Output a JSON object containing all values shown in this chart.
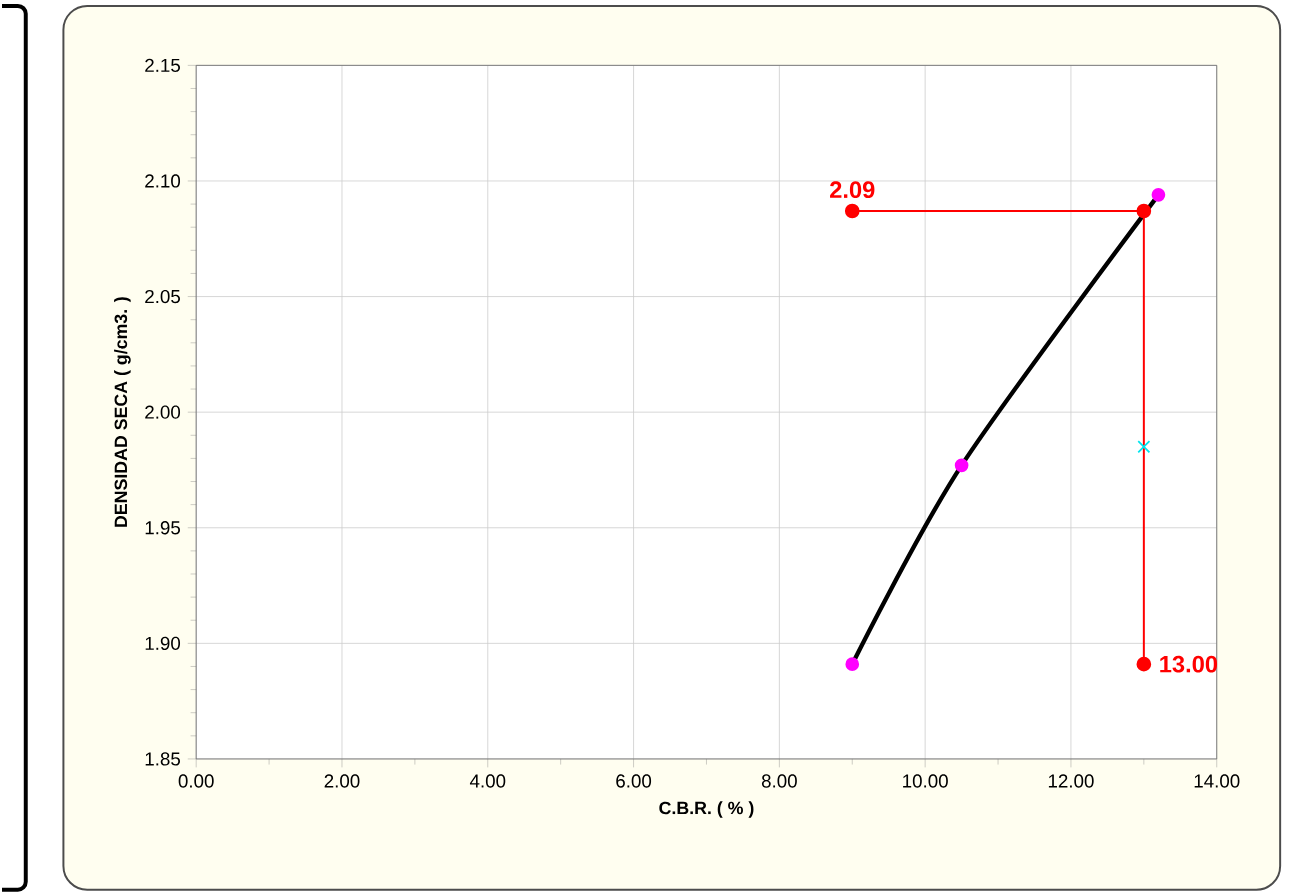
{
  "chart_data": {
    "type": "scatter",
    "xlabel": "C.B.R. ( % )",
    "ylabel": "DENSIDAD SECA ( g/cm3. )",
    "xlim": [
      0,
      14
    ],
    "ylim": [
      1.85,
      2.15
    ],
    "xticks": [
      {
        "value": 0,
        "label": "0.00"
      },
      {
        "value": 2,
        "label": "2.00"
      },
      {
        "value": 4,
        "label": "4.00"
      },
      {
        "value": 6,
        "label": "6.00"
      },
      {
        "value": 8,
        "label": "8.00"
      },
      {
        "value": 10,
        "label": "10.00"
      },
      {
        "value": 12,
        "label": "12.00"
      },
      {
        "value": 14,
        "label": "14.00"
      }
    ],
    "yticks": [
      {
        "value": 1.85,
        "label": "1.85"
      },
      {
        "value": 1.9,
        "label": "1.90"
      },
      {
        "value": 1.95,
        "label": "1.95"
      },
      {
        "value": 2.0,
        "label": "2.00"
      },
      {
        "value": 2.05,
        "label": "2.05"
      },
      {
        "value": 2.1,
        "label": "2.10"
      },
      {
        "value": 2.15,
        "label": "2.15"
      }
    ],
    "grid": true,
    "series": [
      {
        "type": "line",
        "color": "#000000",
        "x": [
          9.0,
          10.5,
          13.2
        ],
        "values": [
          1.891,
          1.977,
          2.094
        ],
        "marker": "none"
      },
      {
        "color": "#ff00ff",
        "x": [
          9.0,
          10.5,
          13.2
        ],
        "values": [
          1.891,
          1.977,
          2.094
        ],
        "marker": "circle"
      },
      {
        "type": "line",
        "color": "#ff0000",
        "x": [
          9.0,
          13.0,
          13.0
        ],
        "values": [
          2.087,
          2.087,
          1.891
        ],
        "marker": "circle"
      },
      {
        "color": "#00e5ee",
        "x": [
          13.0
        ],
        "values": [
          1.985
        ],
        "marker": "cross"
      }
    ],
    "annotations": [
      {
        "text": "2.09",
        "x": 9.0,
        "y": 2.087
      },
      {
        "text": "13.00",
        "x": 13.0,
        "y": 1.891
      }
    ]
  }
}
